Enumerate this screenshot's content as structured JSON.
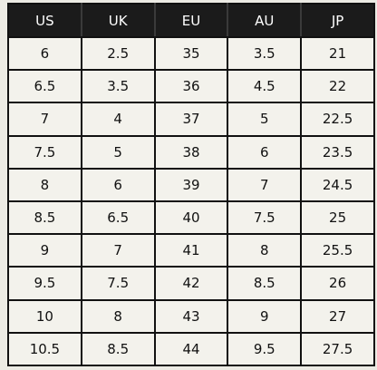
{
  "size_chart": {
    "headers": [
      "US",
      "UK",
      "EU",
      "AU",
      "JP"
    ],
    "rows": [
      [
        "6",
        "2.5",
        "35",
        "3.5",
        "21"
      ],
      [
        "6.5",
        "3.5",
        "36",
        "4.5",
        "22"
      ],
      [
        "7",
        "4",
        "37",
        "5",
        "22.5"
      ],
      [
        "7.5",
        "5",
        "38",
        "6",
        "23.5"
      ],
      [
        "8",
        "6",
        "39",
        "7",
        "24.5"
      ],
      [
        "8.5",
        "6.5",
        "40",
        "7.5",
        "25"
      ],
      [
        "9",
        "7",
        "41",
        "8",
        "25.5"
      ],
      [
        "9.5",
        "7.5",
        "42",
        "8.5",
        "26"
      ],
      [
        "10",
        "8",
        "43",
        "9",
        "27"
      ],
      [
        "10.5",
        "8.5",
        "44",
        "9.5",
        "27.5"
      ]
    ]
  },
  "colors": {
    "header_bg": "#1b1b1b",
    "header_text": "#ffffff",
    "cell_bg": "#f3f2ec",
    "border": "#111111"
  }
}
